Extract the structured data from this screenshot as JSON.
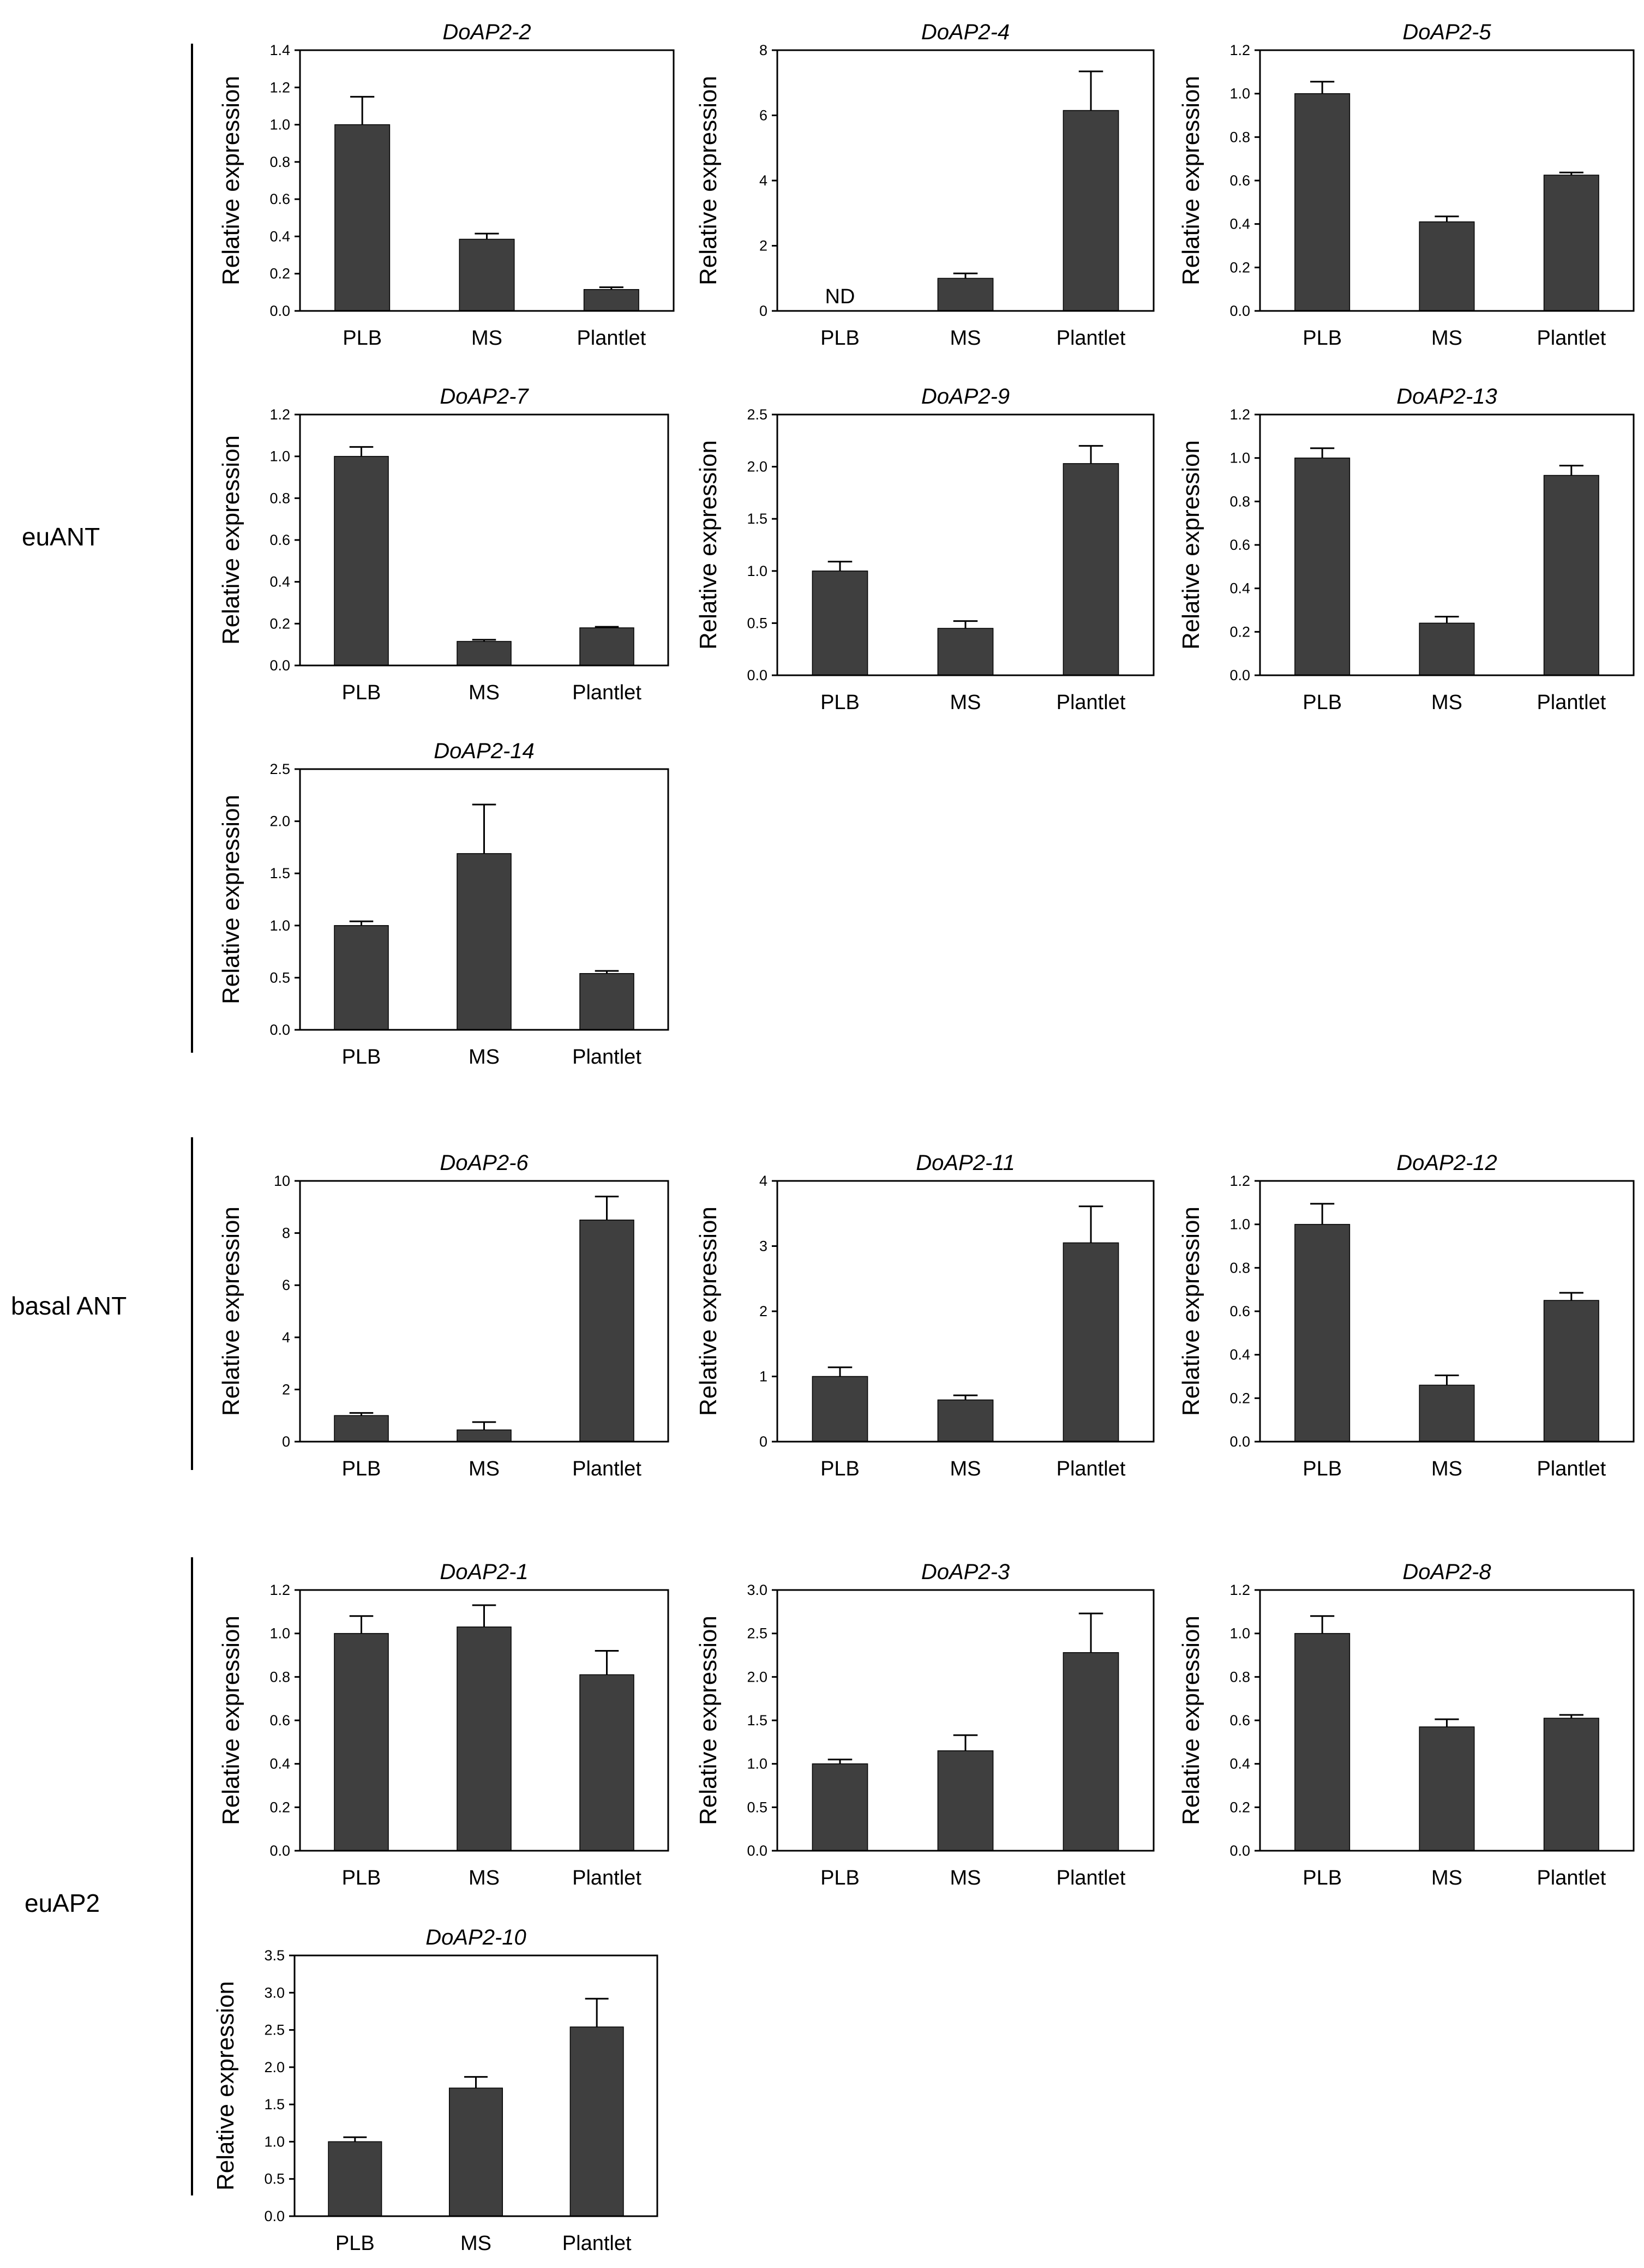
{
  "groups": [
    {
      "name": "euANT"
    },
    {
      "name": "basal ANT"
    },
    {
      "name": "euAP2"
    }
  ],
  "chart_data": [
    {
      "type": "bar",
      "title": "DoAP2-2",
      "group": "euANT",
      "ylabel": "Relative expression",
      "xlabel": "",
      "categories": [
        "PLB",
        "MS",
        "Plantlet"
      ],
      "values": [
        1.0,
        0.385,
        0.115
      ],
      "errors": [
        0.15,
        0.03,
        0.012
      ],
      "ylim": [
        0,
        1.4
      ],
      "yticks": [
        0,
        0.2,
        0.4,
        0.6,
        0.8,
        1.0,
        1.2,
        1.4
      ],
      "ytick_labels": [
        "0.0",
        "0.2",
        "0.4",
        "0.6",
        "0.8",
        "1.0",
        "1.2",
        "1.4"
      ],
      "bar_labels": [
        "",
        "",
        ""
      ]
    },
    {
      "type": "bar",
      "title": "DoAP2-4",
      "group": "euANT",
      "ylabel": "Relative expression",
      "xlabel": "",
      "categories": [
        "PLB",
        "MS",
        "Plantlet"
      ],
      "values": [
        0,
        1.0,
        6.15
      ],
      "errors": [
        0,
        0.15,
        1.2
      ],
      "ylim": [
        0,
        8
      ],
      "yticks": [
        0,
        2,
        4,
        6,
        8
      ],
      "ytick_labels": [
        "0",
        "2",
        "4",
        "6",
        "8"
      ],
      "bar_labels": [
        "ND",
        "",
        ""
      ]
    },
    {
      "type": "bar",
      "title": "DoAP2-5",
      "group": "euANT",
      "ylabel": "Relative expression",
      "xlabel": "",
      "categories": [
        "PLB",
        "MS",
        "Plantlet"
      ],
      "values": [
        1.0,
        0.41,
        0.625
      ],
      "errors": [
        0.055,
        0.025,
        0.012
      ],
      "ylim": [
        0,
        1.2
      ],
      "yticks": [
        0,
        0.2,
        0.4,
        0.6,
        0.8,
        1.0,
        1.2
      ],
      "ytick_labels": [
        "0.0",
        "0.2",
        "0.4",
        "0.6",
        "0.8",
        "1.0",
        "1.2"
      ],
      "bar_labels": [
        "",
        "",
        ""
      ]
    },
    {
      "type": "bar",
      "title": "DoAP2-7",
      "group": "euANT",
      "ylabel": "Relative expression",
      "xlabel": "",
      "categories": [
        "PLB",
        "MS",
        "Plantlet"
      ],
      "values": [
        1.0,
        0.115,
        0.18
      ],
      "errors": [
        0.045,
        0.008,
        0.005
      ],
      "ylim": [
        0,
        1.2
      ],
      "yticks": [
        0,
        0.2,
        0.4,
        0.6,
        0.8,
        1.0,
        1.2
      ],
      "ytick_labels": [
        "0.0",
        "0.2",
        "0.4",
        "0.6",
        "0.8",
        "1.0",
        "1.2"
      ],
      "bar_labels": [
        "",
        "",
        ""
      ]
    },
    {
      "type": "bar",
      "title": "DoAP2-9",
      "group": "euANT",
      "ylabel": "Relative expression",
      "xlabel": "",
      "categories": [
        "PLB",
        "MS",
        "Plantlet"
      ],
      "values": [
        1.0,
        0.45,
        2.03
      ],
      "errors": [
        0.09,
        0.07,
        0.17
      ],
      "ylim": [
        0,
        2.5
      ],
      "yticks": [
        0,
        0.5,
        1.0,
        1.5,
        2.0,
        2.5
      ],
      "ytick_labels": [
        "0.0",
        "0.5",
        "1.0",
        "1.5",
        "2.0",
        "2.5"
      ],
      "bar_labels": [
        "",
        "",
        ""
      ]
    },
    {
      "type": "bar",
      "title": "DoAP2-13",
      "group": "euANT",
      "ylabel": "Relative expression",
      "xlabel": "",
      "categories": [
        "PLB",
        "MS",
        "Plantlet"
      ],
      "values": [
        1.0,
        0.24,
        0.92
      ],
      "errors": [
        0.045,
        0.03,
        0.045
      ],
      "ylim": [
        0,
        1.2
      ],
      "yticks": [
        0,
        0.2,
        0.4,
        0.6,
        0.8,
        1.0,
        1.2
      ],
      "ytick_labels": [
        "0.0",
        "0.2",
        "0.4",
        "0.6",
        "0.8",
        "1.0",
        "1.2"
      ],
      "bar_labels": [
        "",
        "",
        ""
      ]
    },
    {
      "type": "bar",
      "title": "DoAP2-14",
      "group": "euANT",
      "ylabel": "Relative expression",
      "xlabel": "",
      "categories": [
        "PLB",
        "MS",
        "Plantlet"
      ],
      "values": [
        1.0,
        1.69,
        0.54
      ],
      "errors": [
        0.04,
        0.47,
        0.025
      ],
      "ylim": [
        0,
        2.5
      ],
      "yticks": [
        0,
        0.5,
        1.0,
        1.5,
        2.0,
        2.5
      ],
      "ytick_labels": [
        "0.0",
        "0.5",
        "1.0",
        "1.5",
        "2.0",
        "2.5"
      ],
      "bar_labels": [
        "",
        "",
        ""
      ]
    },
    {
      "type": "bar",
      "title": "DoAP2-6",
      "group": "basal ANT",
      "ylabel": "Relative expression",
      "xlabel": "",
      "categories": [
        "PLB",
        "MS",
        "Plantlet"
      ],
      "values": [
        1.0,
        0.45,
        8.5
      ],
      "errors": [
        0.1,
        0.3,
        0.9
      ],
      "ylim": [
        0,
        10
      ],
      "yticks": [
        0,
        2,
        4,
        6,
        8,
        10
      ],
      "ytick_labels": [
        "0",
        "2",
        "4",
        "6",
        "8",
        "10"
      ],
      "bar_labels": [
        "",
        "",
        ""
      ]
    },
    {
      "type": "bar",
      "title": "DoAP2-11",
      "group": "basal ANT",
      "ylabel": "Relative expression",
      "xlabel": "",
      "categories": [
        "PLB",
        "MS",
        "Plantlet"
      ],
      "values": [
        1.0,
        0.64,
        3.05
      ],
      "errors": [
        0.14,
        0.07,
        0.56
      ],
      "ylim": [
        0,
        4
      ],
      "yticks": [
        0,
        1,
        2,
        3,
        4
      ],
      "ytick_labels": [
        "0",
        "1",
        "2",
        "3",
        "4"
      ],
      "bar_labels": [
        "",
        "",
        ""
      ]
    },
    {
      "type": "bar",
      "title": "DoAP2-12",
      "group": "basal ANT",
      "ylabel": "Relative expression",
      "xlabel": "",
      "categories": [
        "PLB",
        "MS",
        "Plantlet"
      ],
      "values": [
        1.0,
        0.26,
        0.65
      ],
      "errors": [
        0.095,
        0.045,
        0.035
      ],
      "ylim": [
        0,
        1.2
      ],
      "yticks": [
        0,
        0.2,
        0.4,
        0.6,
        0.8,
        1.0,
        1.2
      ],
      "ytick_labels": [
        "0.0",
        "0.2",
        "0.4",
        "0.6",
        "0.8",
        "1.0",
        "1.2"
      ],
      "bar_labels": [
        "",
        "",
        ""
      ]
    },
    {
      "type": "bar",
      "title": "DoAP2-1",
      "group": "euAP2",
      "ylabel": "Relative expression",
      "xlabel": "",
      "categories": [
        "PLB",
        "MS",
        "Plantlet"
      ],
      "values": [
        1.0,
        1.03,
        0.81
      ],
      "errors": [
        0.08,
        0.1,
        0.11
      ],
      "ylim": [
        0,
        1.2
      ],
      "yticks": [
        0,
        0.2,
        0.4,
        0.6,
        0.8,
        1.0,
        1.2
      ],
      "ytick_labels": [
        "0.0",
        "0.2",
        "0.4",
        "0.6",
        "0.8",
        "1.0",
        "1.2"
      ],
      "bar_labels": [
        "",
        "",
        ""
      ]
    },
    {
      "type": "bar",
      "title": "DoAP2-3",
      "group": "euAP2",
      "ylabel": "Relative expression",
      "xlabel": "",
      "categories": [
        "PLB",
        "MS",
        "Plantlet"
      ],
      "values": [
        1.0,
        1.15,
        2.28
      ],
      "errors": [
        0.05,
        0.18,
        0.45
      ],
      "ylim": [
        0,
        3.0
      ],
      "yticks": [
        0,
        0.5,
        1.0,
        1.5,
        2.0,
        2.5,
        3.0
      ],
      "ytick_labels": [
        "0.0",
        "0.5",
        "1.0",
        "1.5",
        "2.0",
        "2.5",
        "3.0"
      ],
      "bar_labels": [
        "",
        "",
        ""
      ]
    },
    {
      "type": "bar",
      "title": "DoAP2-8",
      "group": "euAP2",
      "ylabel": "Relative expression",
      "xlabel": "",
      "categories": [
        "PLB",
        "MS",
        "Plantlet"
      ],
      "values": [
        1.0,
        0.57,
        0.61
      ],
      "errors": [
        0.08,
        0.035,
        0.015
      ],
      "ylim": [
        0,
        1.2
      ],
      "yticks": [
        0,
        0.2,
        0.4,
        0.6,
        0.8,
        1.0,
        1.2
      ],
      "ytick_labels": [
        "0.0",
        "0.2",
        "0.4",
        "0.6",
        "0.8",
        "1.0",
        "1.2"
      ],
      "bar_labels": [
        "",
        "",
        ""
      ]
    },
    {
      "type": "bar",
      "title": "DoAP2-10",
      "group": "euAP2",
      "ylabel": "Relative expression",
      "xlabel": "",
      "categories": [
        "PLB",
        "MS",
        "Plantlet"
      ],
      "values": [
        1.0,
        1.72,
        2.54
      ],
      "errors": [
        0.06,
        0.15,
        0.38
      ],
      "ylim": [
        0,
        3.5
      ],
      "yticks": [
        0,
        0.5,
        1.0,
        1.5,
        2.0,
        2.5,
        3.0,
        3.5
      ],
      "ytick_labels": [
        "0.0",
        "0.5",
        "1.0",
        "1.5",
        "2.0",
        "2.5",
        "3.0",
        "3.5"
      ],
      "bar_labels": [
        "",
        "",
        ""
      ]
    }
  ]
}
